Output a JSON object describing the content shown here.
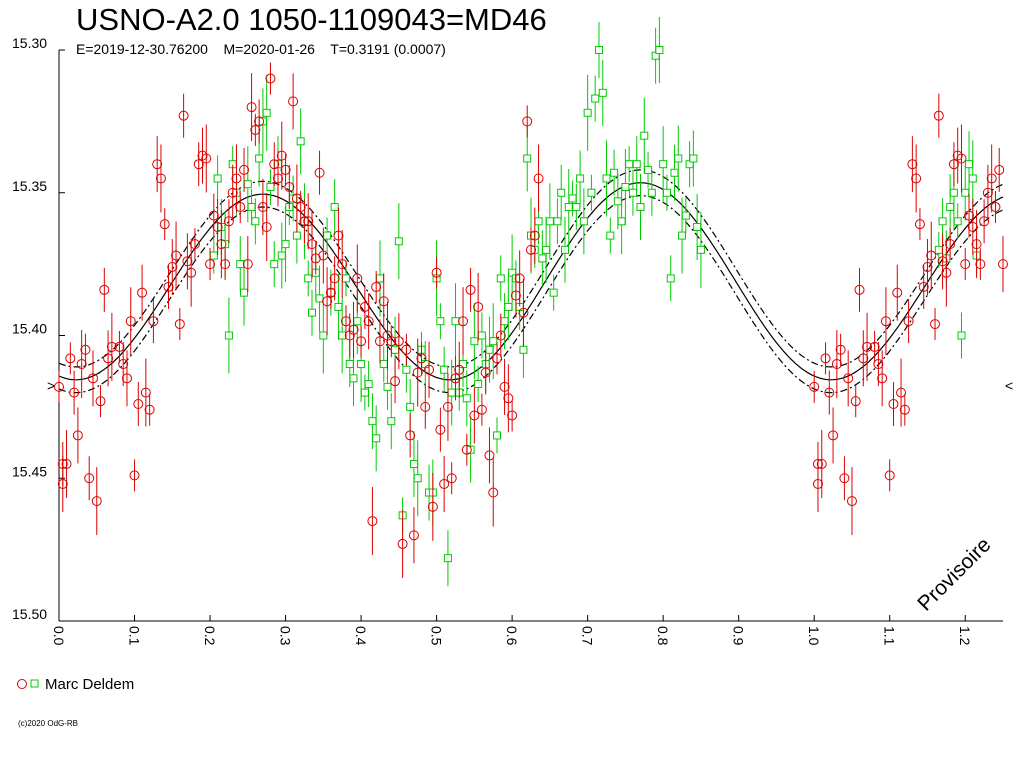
{
  "title": "USNO-A2.0 1050-1109043=MD46",
  "subtitle": "E=2019-12-30.76200    M=2020-01-26    T=0.3191 (0.0007)",
  "watermark": "Provisoire",
  "credit": "(c)2020 OdG-RB",
  "colors": {
    "observer": "#dd0000",
    "green": "#00cc00",
    "model": "#000000"
  },
  "chart_data": {
    "type": "scatter",
    "xlim": [
      0.0,
      1.25
    ],
    "ylim": [
      15.3,
      15.5
    ],
    "y_inverted": true,
    "x_ticks": [
      "0.0",
      "0.1",
      "0.2",
      "0.3",
      "0.4",
      "0.5",
      "0.6",
      "0.7",
      "0.8",
      "0.9",
      "1.0",
      "1.1",
      "1.2"
    ],
    "y_ticks": [
      "15.30",
      "15.35",
      "15.40",
      "15.45",
      "15.50"
    ],
    "legend": {
      "label": "Marc Deldem",
      "placement": "bottom-left"
    },
    "model": {
      "mean_mag": 15.382,
      "amplitude": 0.0335,
      "max_phase": 0.27,
      "second_max_phase": 0.77,
      "envelope_offset": 0.0045
    },
    "series": [
      {
        "name": "Marc Deldem",
        "marker": "circle",
        "points": [
          [
            0.0,
            15.418
          ],
          [
            0.005,
            15.445
          ],
          [
            0.005,
            15.452
          ],
          [
            0.01,
            15.445
          ],
          [
            0.015,
            15.408
          ],
          [
            0.02,
            15.42
          ],
          [
            0.025,
            15.435
          ],
          [
            0.03,
            15.41
          ],
          [
            0.035,
            15.405
          ],
          [
            0.04,
            15.45
          ],
          [
            0.045,
            15.415
          ],
          [
            0.05,
            15.458
          ],
          [
            0.055,
            15.423
          ],
          [
            0.06,
            15.384
          ],
          [
            0.065,
            15.408
          ],
          [
            0.07,
            15.404
          ],
          [
            0.08,
            15.404
          ],
          [
            0.085,
            15.41
          ],
          [
            0.09,
            15.415
          ],
          [
            0.095,
            15.395
          ],
          [
            0.1,
            15.449
          ],
          [
            0.105,
            15.424
          ],
          [
            0.11,
            15.385
          ],
          [
            0.115,
            15.42
          ],
          [
            0.12,
            15.426
          ],
          [
            0.125,
            15.395
          ],
          [
            0.13,
            15.34
          ],
          [
            0.135,
            15.345
          ],
          [
            0.14,
            15.361
          ],
          [
            0.145,
            15.383
          ],
          [
            0.15,
            15.376
          ],
          [
            0.155,
            15.372
          ],
          [
            0.16,
            15.396
          ],
          [
            0.165,
            15.323
          ],
          [
            0.17,
            15.374
          ],
          [
            0.175,
            15.378
          ],
          [
            0.18,
            15.368
          ],
          [
            0.185,
            15.34
          ],
          [
            0.19,
            15.337
          ],
          [
            0.195,
            15.338
          ],
          [
            0.2,
            15.375
          ],
          [
            0.205,
            15.358
          ],
          [
            0.21,
            15.362
          ],
          [
            0.215,
            15.368
          ],
          [
            0.22,
            15.375
          ],
          [
            0.225,
            15.36
          ],
          [
            0.23,
            15.35
          ],
          [
            0.235,
            15.345
          ],
          [
            0.24,
            15.355
          ],
          [
            0.245,
            15.342
          ],
          [
            0.25,
            15.375
          ],
          [
            0.255,
            15.32
          ],
          [
            0.26,
            15.328
          ],
          [
            0.265,
            15.325
          ],
          [
            0.27,
            15.355
          ],
          [
            0.275,
            15.362
          ],
          [
            0.28,
            15.31
          ],
          [
            0.285,
            15.34
          ],
          [
            0.29,
            15.345
          ],
          [
            0.295,
            15.337
          ],
          [
            0.3,
            15.342
          ],
          [
            0.305,
            15.348
          ],
          [
            0.31,
            15.318
          ],
          [
            0.315,
            15.352
          ],
          [
            0.32,
            15.355
          ],
          [
            0.325,
            15.36
          ],
          [
            0.33,
            15.36
          ],
          [
            0.335,
            15.368
          ],
          [
            0.34,
            15.373
          ],
          [
            0.345,
            15.343
          ],
          [
            0.35,
            15.372
          ],
          [
            0.355,
            15.388
          ],
          [
            0.36,
            15.385
          ],
          [
            0.365,
            15.38
          ],
          [
            0.37,
            15.365
          ],
          [
            0.375,
            15.375
          ],
          [
            0.38,
            15.395
          ],
          [
            0.385,
            15.4
          ],
          [
            0.39,
            15.398
          ],
          [
            0.395,
            15.38
          ],
          [
            0.4,
            15.402
          ],
          [
            0.405,
            15.39
          ],
          [
            0.41,
            15.395
          ],
          [
            0.415,
            15.465
          ],
          [
            0.42,
            15.383
          ],
          [
            0.425,
            15.402
          ],
          [
            0.43,
            15.388
          ],
          [
            0.435,
            15.4
          ],
          [
            0.44,
            15.402
          ],
          [
            0.445,
            15.416
          ],
          [
            0.45,
            15.402
          ],
          [
            0.455,
            15.473
          ],
          [
            0.46,
            15.405
          ],
          [
            0.465,
            15.435
          ],
          [
            0.47,
            15.47
          ],
          [
            0.475,
            15.413
          ],
          [
            0.48,
            15.408
          ],
          [
            0.485,
            15.425
          ],
          [
            0.49,
            15.412
          ],
          [
            0.495,
            15.46
          ],
          [
            0.5,
            15.378
          ],
          [
            0.505,
            15.433
          ],
          [
            0.51,
            15.452
          ],
          [
            0.515,
            15.425
          ],
          [
            0.52,
            15.45
          ],
          [
            0.525,
            15.415
          ],
          [
            0.53,
            15.412
          ],
          [
            0.535,
            15.395
          ],
          [
            0.54,
            15.44
          ],
          [
            0.545,
            15.384
          ],
          [
            0.55,
            15.428
          ],
          [
            0.555,
            15.39
          ],
          [
            0.56,
            15.426
          ],
          [
            0.565,
            15.413
          ],
          [
            0.57,
            15.442
          ],
          [
            0.575,
            15.455
          ],
          [
            0.58,
            15.408
          ],
          [
            0.585,
            15.4
          ],
          [
            0.59,
            15.418
          ],
          [
            0.595,
            15.422
          ],
          [
            0.6,
            15.428
          ],
          [
            0.605,
            15.386
          ],
          [
            0.61,
            15.38
          ],
          [
            0.615,
            15.392
          ],
          [
            0.62,
            15.325
          ],
          [
            0.625,
            15.37
          ],
          [
            0.63,
            15.365
          ],
          [
            0.635,
            15.345
          ]
        ]
      },
      {
        "name": "green",
        "marker": "square",
        "points": [
          [
            0.205,
            15.372
          ],
          [
            0.21,
            15.345
          ],
          [
            0.215,
            15.362
          ],
          [
            0.22,
            15.368
          ],
          [
            0.225,
            15.4
          ],
          [
            0.23,
            15.34
          ],
          [
            0.235,
            15.35
          ],
          [
            0.24,
            15.375
          ],
          [
            0.245,
            15.385
          ],
          [
            0.25,
            15.347
          ],
          [
            0.255,
            15.355
          ],
          [
            0.26,
            15.36
          ],
          [
            0.265,
            15.338
          ],
          [
            0.27,
            15.325
          ],
          [
            0.275,
            15.322
          ],
          [
            0.28,
            15.348
          ],
          [
            0.285,
            15.375
          ],
          [
            0.29,
            15.34
          ],
          [
            0.295,
            15.372
          ],
          [
            0.3,
            15.368
          ],
          [
            0.305,
            15.355
          ],
          [
            0.31,
            15.352
          ],
          [
            0.315,
            15.365
          ],
          [
            0.32,
            15.332
          ],
          [
            0.325,
            15.36
          ],
          [
            0.33,
            15.38
          ],
          [
            0.335,
            15.392
          ],
          [
            0.34,
            15.378
          ],
          [
            0.345,
            15.387
          ],
          [
            0.35,
            15.4
          ],
          [
            0.355,
            15.365
          ],
          [
            0.36,
            15.385
          ],
          [
            0.365,
            15.355
          ],
          [
            0.37,
            15.39
          ],
          [
            0.375,
            15.4
          ],
          [
            0.38,
            15.38
          ],
          [
            0.385,
            15.41
          ],
          [
            0.39,
            15.415
          ],
          [
            0.395,
            15.395
          ],
          [
            0.4,
            15.41
          ],
          [
            0.405,
            15.42
          ],
          [
            0.41,
            15.417
          ],
          [
            0.415,
            15.43
          ],
          [
            0.42,
            15.436
          ],
          [
            0.425,
            15.38
          ],
          [
            0.43,
            15.41
          ],
          [
            0.435,
            15.418
          ],
          [
            0.44,
            15.43
          ],
          [
            0.445,
            15.405
          ],
          [
            0.45,
            15.367
          ],
          [
            0.455,
            15.463
          ],
          [
            0.46,
            15.412
          ],
          [
            0.465,
            15.425
          ],
          [
            0.47,
            15.445
          ],
          [
            0.475,
            15.45
          ],
          [
            0.48,
            15.405
          ],
          [
            0.485,
            15.41
          ],
          [
            0.49,
            15.455
          ],
          [
            0.495,
            15.455
          ],
          [
            0.5,
            15.38
          ],
          [
            0.505,
            15.395
          ],
          [
            0.51,
            15.412
          ],
          [
            0.515,
            15.478
          ],
          [
            0.52,
            15.42
          ],
          [
            0.525,
            15.395
          ],
          [
            0.53,
            15.42
          ],
          [
            0.535,
            15.41
          ],
          [
            0.54,
            15.422
          ],
          [
            0.545,
            15.44
          ],
          [
            0.55,
            15.402
          ],
          [
            0.555,
            15.417
          ],
          [
            0.56,
            15.4
          ],
          [
            0.565,
            15.41
          ],
          [
            0.57,
            15.405
          ],
          [
            0.575,
            15.402
          ],
          [
            0.58,
            15.435
          ],
          [
            0.585,
            15.38
          ],
          [
            0.59,
            15.395
          ],
          [
            0.595,
            15.39
          ],
          [
            0.6,
            15.378
          ],
          [
            0.605,
            15.38
          ],
          [
            0.61,
            15.39
          ],
          [
            0.615,
            15.405
          ],
          [
            0.62,
            15.338
          ],
          [
            0.625,
            15.365
          ],
          [
            0.63,
            15.37
          ],
          [
            0.635,
            15.36
          ],
          [
            0.64,
            15.373
          ],
          [
            0.645,
            15.37
          ],
          [
            0.65,
            15.36
          ],
          [
            0.655,
            15.385
          ],
          [
            0.66,
            15.36
          ],
          [
            0.665,
            15.35
          ],
          [
            0.67,
            15.37
          ],
          [
            0.675,
            15.355
          ],
          [
            0.68,
            15.352
          ],
          [
            0.685,
            15.355
          ],
          [
            0.69,
            15.345
          ],
          [
            0.695,
            15.36
          ],
          [
            0.7,
            15.322
          ],
          [
            0.705,
            15.35
          ],
          [
            0.71,
            15.317
          ],
          [
            0.715,
            15.3
          ],
          [
            0.72,
            15.315
          ],
          [
            0.725,
            15.345
          ],
          [
            0.73,
            15.365
          ],
          [
            0.735,
            15.343
          ],
          [
            0.74,
            15.353
          ],
          [
            0.745,
            15.36
          ],
          [
            0.75,
            15.348
          ],
          [
            0.755,
            15.34
          ],
          [
            0.76,
            15.35
          ],
          [
            0.765,
            15.34
          ],
          [
            0.77,
            15.355
          ],
          [
            0.775,
            15.33
          ],
          [
            0.78,
            15.342
          ],
          [
            0.785,
            15.35
          ],
          [
            0.79,
            15.302
          ],
          [
            0.795,
            15.3
          ],
          [
            0.8,
            15.34
          ],
          [
            0.805,
            15.35
          ],
          [
            0.81,
            15.38
          ],
          [
            0.815,
            15.343
          ],
          [
            0.82,
            15.338
          ],
          [
            0.825,
            15.365
          ],
          [
            0.83,
            15.358
          ],
          [
            0.835,
            15.34
          ],
          [
            0.84,
            15.338
          ],
          [
            0.845,
            15.362
          ],
          [
            0.85,
            15.37
          ],
          [
            1.165,
            15.37
          ],
          [
            1.17,
            15.36
          ],
          [
            1.175,
            15.373
          ],
          [
            1.18,
            15.355
          ],
          [
            1.185,
            15.35
          ],
          [
            1.19,
            15.36
          ],
          [
            1.195,
            15.4
          ],
          [
            1.2,
            15.35
          ],
          [
            1.205,
            15.34
          ],
          [
            1.21,
            15.345
          ],
          [
            1.215,
            15.372
          ]
        ]
      }
    ]
  }
}
